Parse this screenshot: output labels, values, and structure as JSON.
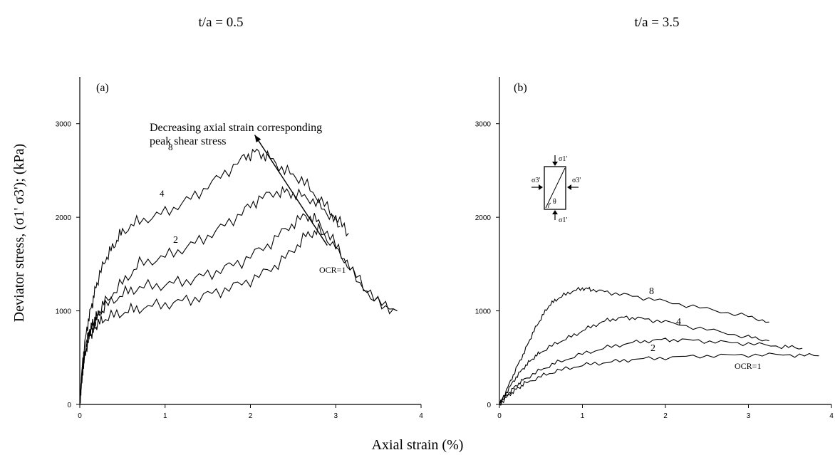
{
  "figure": {
    "xlabel": "Axial strain (%)",
    "ylabel": "Deviator stress, (σ1'   σ3'); (kPa)"
  },
  "chart_data": [
    {
      "type": "line",
      "title": "t/a = 0.5",
      "panel_label": "(a)",
      "xlim": [
        0,
        4
      ],
      "ylim": [
        0,
        3500
      ],
      "x_ticks": [
        "0",
        "1",
        "2",
        "3",
        "4"
      ],
      "y_ticks": [
        "0",
        "1000",
        "2000",
        "3000"
      ],
      "annotation": {
        "text_line1": "Decreasing axial strain corresponding",
        "text_line2": "peak shear stress",
        "arrow_from": [
          2.9,
          1700
        ],
        "arrow_to": [
          2.05,
          2880
        ]
      },
      "series": [
        {
          "name": "8",
          "x": [
            0,
            0.02,
            0.05,
            0.1,
            0.15,
            0.2,
            0.3,
            0.4,
            0.5,
            0.7,
            1.0,
            1.3,
            1.6,
            1.9,
            2.05,
            2.2,
            2.4,
            2.6,
            2.8,
            3.0,
            3.15
          ],
          "y": [
            0,
            300,
            600,
            900,
            1100,
            1300,
            1550,
            1700,
            1850,
            1960,
            2050,
            2200,
            2400,
            2620,
            2700,
            2650,
            2500,
            2400,
            2200,
            2000,
            1830
          ]
        },
        {
          "name": "4",
          "x": [
            0,
            0.02,
            0.05,
            0.1,
            0.15,
            0.2,
            0.3,
            0.5,
            0.7,
            1.0,
            1.3,
            1.6,
            1.9,
            2.1,
            2.35,
            2.5,
            2.7,
            2.9,
            3.05
          ],
          "y": [
            0,
            250,
            500,
            750,
            850,
            950,
            1100,
            1300,
            1500,
            1580,
            1700,
            1850,
            2050,
            2200,
            2280,
            2250,
            2200,
            2050,
            1900
          ]
        },
        {
          "name": "2",
          "x": [
            0,
            0.02,
            0.05,
            0.1,
            0.15,
            0.2,
            0.3,
            0.5,
            0.7,
            1.0,
            1.3,
            1.6,
            1.9,
            2.2,
            2.45,
            2.65,
            2.8,
            3.0,
            3.2,
            3.45,
            3.72
          ],
          "y": [
            0,
            250,
            500,
            750,
            850,
            920,
            1050,
            1180,
            1250,
            1280,
            1330,
            1420,
            1530,
            1700,
            1900,
            2020,
            1950,
            1700,
            1400,
            1120,
            1000
          ]
        },
        {
          "name": "OCR=1",
          "x": [
            0,
            0.02,
            0.05,
            0.1,
            0.15,
            0.2,
            0.3,
            0.5,
            0.7,
            1.0,
            1.3,
            1.6,
            1.9,
            2.2,
            2.45,
            2.65,
            2.8,
            3.0,
            3.2,
            3.45,
            3.72
          ],
          "y": [
            0,
            250,
            480,
            700,
            780,
            850,
            920,
            980,
            1030,
            1070,
            1120,
            1200,
            1290,
            1420,
            1600,
            1800,
            1860,
            1680,
            1420,
            1110,
            1000
          ]
        }
      ]
    },
    {
      "type": "line",
      "title": "t/a = 3.5",
      "panel_label": "(b)",
      "xlim": [
        0,
        4
      ],
      "ylim": [
        0,
        3500
      ],
      "x_ticks": [
        "0",
        "1",
        "2",
        "3",
        "4"
      ],
      "y_ticks": [
        "0",
        "1000",
        "2000",
        "3000"
      ],
      "inset_labels": [
        "σ1'",
        "σ3'",
        "σ3'",
        "θ",
        "σ1'"
      ],
      "series": [
        {
          "name": "8",
          "x": [
            0,
            0.1,
            0.2,
            0.3,
            0.4,
            0.5,
            0.6,
            0.7,
            0.85,
            1.0,
            1.1,
            1.3,
            1.6,
            2.0,
            2.5,
            3.0,
            3.25
          ],
          "y": [
            0,
            180,
            380,
            560,
            760,
            920,
            1060,
            1130,
            1200,
            1240,
            1230,
            1200,
            1160,
            1100,
            1020,
            940,
            880
          ]
        },
        {
          "name": "4",
          "x": [
            0,
            0.1,
            0.2,
            0.3,
            0.4,
            0.5,
            0.7,
            0.9,
            1.1,
            1.3,
            1.5,
            1.7,
            2.0,
            2.5,
            3.0,
            3.25
          ],
          "y": [
            0,
            150,
            290,
            400,
            490,
            560,
            660,
            740,
            830,
            900,
            930,
            920,
            880,
            800,
            720,
            680
          ]
        },
        {
          "name": "2",
          "x": [
            0,
            0.1,
            0.2,
            0.3,
            0.5,
            0.7,
            1.0,
            1.3,
            1.6,
            1.9,
            2.2,
            2.6,
            3.0,
            3.4,
            3.65
          ],
          "y": [
            0,
            110,
            200,
            270,
            370,
            450,
            540,
            610,
            660,
            690,
            690,
            670,
            650,
            620,
            600
          ]
        },
        {
          "name": "OCR=1",
          "x": [
            0,
            0.1,
            0.2,
            0.3,
            0.5,
            0.7,
            1.0,
            1.3,
            1.6,
            2.0,
            2.5,
            3.0,
            3.5,
            3.85
          ],
          "y": [
            0,
            90,
            160,
            220,
            300,
            360,
            420,
            450,
            480,
            500,
            520,
            530,
            530,
            520
          ]
        }
      ]
    }
  ]
}
